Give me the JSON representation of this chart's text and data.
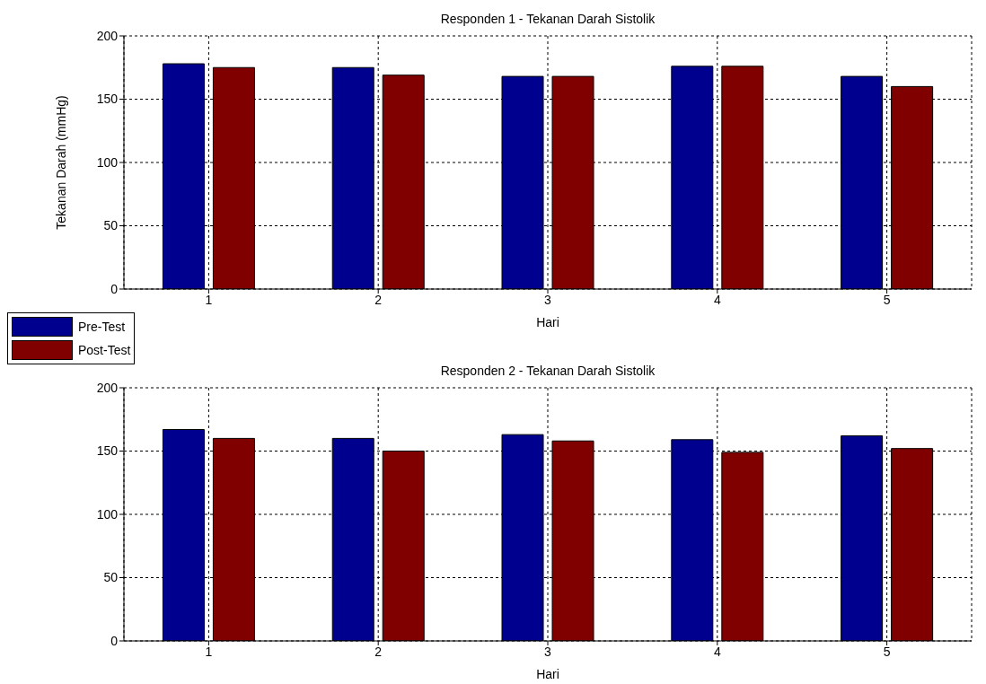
{
  "chart_data": [
    {
      "type": "bar",
      "title": "Responden 1 - Tekanan Darah Sistolik",
      "xlabel": "Hari",
      "ylabel": "Tekanan Darah (mmHg)",
      "categories": [
        "1",
        "2",
        "3",
        "4",
        "5"
      ],
      "series": [
        {
          "name": "Pre-Test",
          "color": "#00008f",
          "values": [
            178,
            175,
            168,
            176,
            168
          ]
        },
        {
          "name": "Post-Test",
          "color": "#800000",
          "values": [
            175,
            169,
            168,
            176,
            160
          ]
        }
      ],
      "ylim": [
        0,
        200
      ],
      "yticks": [
        0,
        50,
        100,
        150,
        200
      ],
      "grid": true,
      "legend": "bottom left"
    },
    {
      "type": "bar",
      "title": "Responden 2 - Tekanan Darah Sistolik",
      "xlabel": "Hari",
      "categories": [
        "1",
        "2",
        "3",
        "4",
        "5"
      ],
      "series": [
        {
          "color": "#00008f",
          "values": [
            167,
            160,
            163,
            159,
            162
          ]
        },
        {
          "color": "#800000",
          "values": [
            160,
            150,
            158,
            149,
            152
          ]
        }
      ],
      "ylim": [
        0,
        200
      ],
      "yticks": [
        0,
        50,
        100,
        150,
        200
      ],
      "grid": true
    }
  ]
}
